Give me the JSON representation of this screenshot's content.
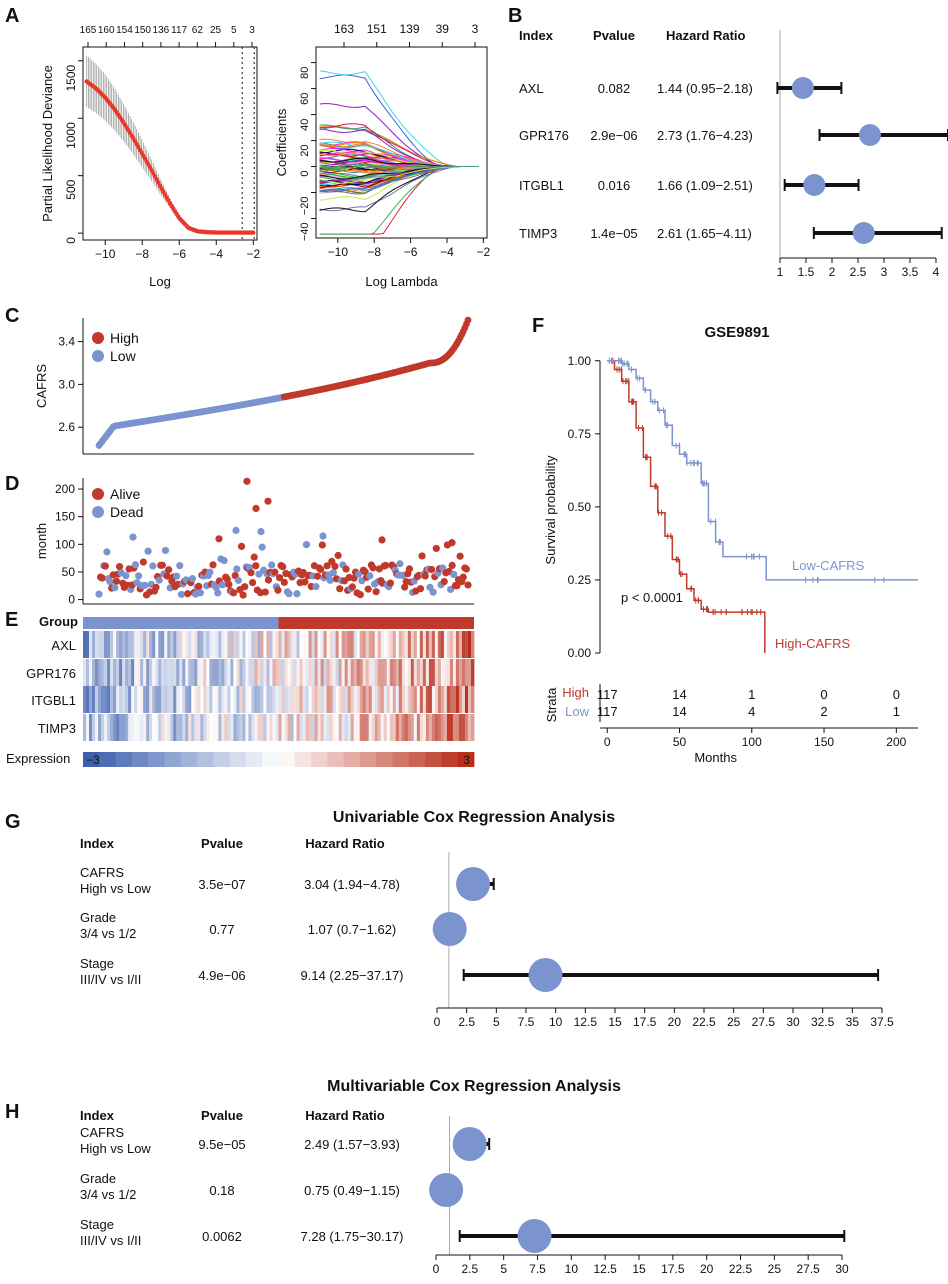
{
  "colors": {
    "red": "#c0392b",
    "blue": "#7b93cf",
    "black": "#111111",
    "gray": "#888888",
    "grid": "#aaaaaa",
    "lineRed": "#e8392b"
  },
  "panel_labels": {
    "A": "A",
    "B": "B",
    "C": "C",
    "D": "D",
    "E": "E",
    "F": "F",
    "G": "G",
    "H": "H"
  },
  "chart_data": [
    {
      "panel": "A-left",
      "type": "line",
      "title": "",
      "xlabel": "Log",
      "ylabel": "Partial Likelihood Deviance",
      "xticks": [
        "−10",
        "−8",
        "−6",
        "−4",
        "−2"
      ],
      "yticks": [
        "0",
        "500",
        "1000",
        "1500"
      ],
      "top_ticks": [
        "165",
        "160",
        "154",
        "150",
        "136",
        "117",
        "62",
        "25",
        "5",
        "3"
      ],
      "xlim": [
        -11.2,
        -1.8
      ],
      "ylim": [
        -60,
        1620
      ],
      "vlines": [
        -2.6,
        -1.95
      ],
      "series": [
        {
          "name": "deviance",
          "x": [
            -11,
            -10.5,
            -10,
            -9.5,
            -9,
            -8.5,
            -8,
            -7.5,
            -7,
            -6.5,
            -6,
            -5.5,
            -5,
            -4.5,
            -4,
            -3.5,
            -3,
            -2.5,
            -2
          ],
          "y": [
            1320,
            1260,
            1180,
            1080,
            960,
            830,
            690,
            550,
            400,
            260,
            130,
            45,
            15,
            8,
            5,
            5,
            5,
            5,
            5
          ]
        }
      ]
    },
    {
      "panel": "A-right",
      "type": "line",
      "xlabel": "Log Lambda",
      "ylabel": "Coefficients",
      "xticks": [
        "−10",
        "−8",
        "−6",
        "−4",
        "−2"
      ],
      "yticks": [
        "−40",
        "−20",
        "0",
        "20",
        "40",
        "60",
        "80"
      ],
      "top_ticks": [
        "163",
        "151",
        "139",
        "39",
        "3"
      ],
      "xlim": [
        -11.2,
        -1.8
      ],
      "ylim": [
        -55,
        92
      ]
    },
    {
      "panel": "B",
      "type": "forest",
      "headers": {
        "index": "Index",
        "pvalue": "Pvalue",
        "hr": "Hazard Ratio"
      },
      "rows": [
        {
          "index": "AXL",
          "pvalue": "0.082",
          "hr_text": "1.44 (0.95−2.18)",
          "hr": 1.44,
          "lo": 0.95,
          "hi": 2.18
        },
        {
          "index": "GPR176",
          "pvalue": "2.9e−06",
          "hr_text": "2.73 (1.76−4.23)",
          "hr": 2.73,
          "lo": 1.76,
          "hi": 4.23
        },
        {
          "index": "ITGBL1",
          "pvalue": "0.016",
          "hr_text": "1.66 (1.09−2.51)",
          "hr": 1.66,
          "lo": 1.09,
          "hi": 2.51
        },
        {
          "index": "TIMP3",
          "pvalue": "1.4e−05",
          "hr_text": "2.61 (1.65−4.11)",
          "hr": 2.61,
          "lo": 1.65,
          "hi": 4.11
        }
      ],
      "xticks": [
        "1",
        "1.5",
        "2",
        "2.5",
        "3",
        "3.5",
        "4"
      ],
      "xlim": [
        1,
        4
      ],
      "ref": 1
    },
    {
      "panel": "C",
      "type": "scatter",
      "ylabel": "CAFRS",
      "yticks": [
        "2.6",
        "3.0",
        "3.4"
      ],
      "ylim": [
        2.35,
        3.62
      ],
      "legend": [
        "High",
        "Low"
      ]
    },
    {
      "panel": "D",
      "type": "scatter",
      "ylabel": "month",
      "yticks": [
        "0",
        "50",
        "100",
        "150",
        "200"
      ],
      "ylim": [
        -8,
        220
      ],
      "legend": [
        "Alive",
        "Dead"
      ],
      "highlights": [
        214,
        178,
        165,
        125,
        123,
        115,
        113,
        110,
        108,
        103
      ]
    },
    {
      "panel": "E",
      "type": "heatmap",
      "rows": [
        "AXL",
        "GPR176",
        "ITGBL1",
        "TIMP3"
      ],
      "group_label": "Group",
      "legend_label": "Expression",
      "legend_min": "−3",
      "legend_max": "3"
    },
    {
      "panel": "F",
      "type": "line",
      "title": "GSE9891",
      "xlabel": "Months",
      "ylabel": "Survival probability",
      "xticks": [
        "0",
        "50",
        "100",
        "150",
        "200"
      ],
      "yticks": [
        "0.00",
        "0.25",
        "0.50",
        "0.75",
        "1.00"
      ],
      "xlim": [
        -5,
        215
      ],
      "ylim": [
        0,
        1.03
      ],
      "pvalue": "p < 0.0001",
      "series": [
        {
          "name": "High-CAFRS",
          "x": [
            0,
            5,
            10,
            15,
            20,
            25,
            30,
            35,
            40,
            45,
            50,
            55,
            60,
            65,
            70,
            80,
            90,
            100,
            109
          ],
          "y": [
            1.0,
            0.97,
            0.93,
            0.86,
            0.77,
            0.67,
            0.57,
            0.48,
            0.4,
            0.32,
            0.27,
            0.22,
            0.18,
            0.15,
            0.14,
            0.14,
            0.14,
            0.14,
            0.0
          ]
        },
        {
          "name": "Low-CAFRS",
          "x": [
            0,
            5,
            10,
            15,
            20,
            25,
            30,
            35,
            40,
            45,
            50,
            55,
            60,
            65,
            70,
            75,
            80,
            100,
            110,
            160,
            215
          ],
          "y": [
            1.0,
            1.0,
            0.99,
            0.97,
            0.94,
            0.9,
            0.86,
            0.83,
            0.78,
            0.71,
            0.68,
            0.65,
            0.65,
            0.58,
            0.45,
            0.38,
            0.33,
            0.33,
            0.25,
            0.25,
            0.25
          ]
        }
      ],
      "risk_table": {
        "label": "Strata",
        "rows": [
          {
            "name": "High",
            "values": [
              "117",
              "14",
              "1",
              "0",
              "0"
            ]
          },
          {
            "name": "Low",
            "values": [
              "117",
              "14",
              "4",
              "2",
              "1"
            ]
          }
        ]
      }
    },
    {
      "panel": "G",
      "type": "forest",
      "title": "Univariable Cox Regression Analysis",
      "headers": {
        "index": "Index",
        "pvalue": "Pvalue",
        "hr": "Hazard Ratio"
      },
      "rows": [
        {
          "index": "CAFRS",
          "sub": "High vs Low",
          "pvalue": "3.5e−07",
          "hr_text": "3.04 (1.94−4.78)",
          "hr": 3.04,
          "lo": 1.94,
          "hi": 4.78
        },
        {
          "index": "Grade",
          "sub": "3/4 vs 1/2",
          "pvalue": "0.77",
          "hr_text": "1.07 (0.7−1.62)",
          "hr": 1.07,
          "lo": 0.7,
          "hi": 1.62
        },
        {
          "index": "Stage",
          "sub": "III/IV vs I/II",
          "pvalue": "4.9e−06",
          "hr_text": "9.14 (2.25−37.17)",
          "hr": 9.14,
          "lo": 2.25,
          "hi": 37.17
        }
      ],
      "xticks": [
        "0",
        "2.5",
        "5",
        "7.5",
        "10",
        "12.5",
        "15",
        "17.5",
        "20",
        "22.5",
        "25",
        "27.5",
        "30",
        "32.5",
        "35",
        "37.5"
      ],
      "xlim": [
        0,
        37.5
      ],
      "ref": 1
    },
    {
      "panel": "H",
      "type": "forest",
      "title": "Multivariable Cox Regression Analysis",
      "headers": {
        "index": "Index",
        "pvalue": "Pvalue",
        "hr": "Hazard Ratio"
      },
      "rows": [
        {
          "index": "CAFRS",
          "sub": "High vs Low",
          "pvalue": "9.5e−05",
          "hr_text": "2.49 (1.57−3.93)",
          "hr": 2.49,
          "lo": 1.57,
          "hi": 3.93
        },
        {
          "index": "Grade",
          "sub": "3/4 vs 1/2",
          "pvalue": "0.18",
          "hr_text": "0.75 (0.49−1.15)",
          "hr": 0.75,
          "lo": 0.49,
          "hi": 1.15
        },
        {
          "index": "Stage",
          "sub": "III/IV vs I/II",
          "pvalue": "0.0062",
          "hr_text": "7.28 (1.75−30.17)",
          "hr": 7.28,
          "lo": 1.75,
          "hi": 30.17
        }
      ],
      "xticks": [
        "0",
        "2.5",
        "5",
        "7.5",
        "10",
        "12.5",
        "15",
        "17.5",
        "20",
        "22.5",
        "25",
        "27.5",
        "30"
      ],
      "xlim": [
        0,
        30
      ],
      "ref": 1
    }
  ]
}
